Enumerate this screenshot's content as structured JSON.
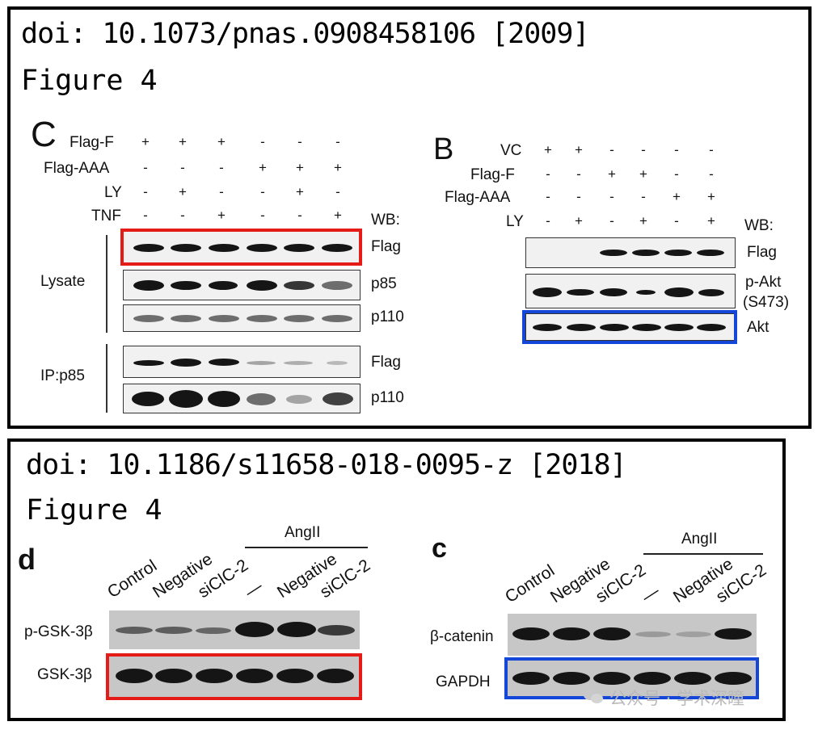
{
  "top": {
    "ref": "doi: 10.1073/pnas.0908458106 [2009]",
    "figure": "Figure 4",
    "panel_c": {
      "letter": "C",
      "conditions": [
        {
          "name": "Flag-F",
          "signs": [
            "+",
            "+",
            "+",
            "-",
            "-",
            "-"
          ]
        },
        {
          "name": "Flag-AAA",
          "signs": [
            "-",
            "-",
            "-",
            "+",
            "+",
            "+"
          ]
        },
        {
          "name": "LY",
          "signs": [
            "-",
            "+",
            "-",
            "-",
            "+",
            "-"
          ]
        },
        {
          "name": "TNF",
          "signs": [
            "-",
            "-",
            "+",
            "-",
            "-",
            "+"
          ]
        }
      ],
      "wb": "WB:",
      "group_lysate": "Lysate",
      "group_ip": "IP:p85",
      "blots": [
        "Flag",
        "p85",
        "p110",
        "Flag",
        "p110"
      ]
    },
    "panel_b": {
      "letter": "B",
      "conditions": [
        {
          "name": "VC",
          "signs": [
            "+",
            "+",
            "-",
            "-",
            "-",
            "-"
          ]
        },
        {
          "name": "Flag-F",
          "signs": [
            "-",
            "-",
            "+",
            "+",
            "-",
            "-"
          ]
        },
        {
          "name": "Flag-AAA",
          "signs": [
            "-",
            "-",
            "-",
            "-",
            "+",
            "+"
          ]
        },
        {
          "name": "LY",
          "signs": [
            "-",
            "+",
            "-",
            "+",
            "-",
            "+"
          ]
        }
      ],
      "wb": "WB:",
      "blots": [
        "Flag",
        "p-Akt",
        "(S473)",
        "Akt"
      ]
    }
  },
  "bottom": {
    "ref": "doi: 10.1186/s11658-018-0095-z [2018]",
    "figure": "Figure 4",
    "panel_d": {
      "letter": "d",
      "treatment": "AngII",
      "lanes": [
        "Control",
        "Negative",
        "siClC-2",
        "—",
        "Negative",
        "siClC-2"
      ],
      "blots": [
        "p-GSK-3β",
        "GSK-3β"
      ]
    },
    "panel_c": {
      "letter": "c",
      "treatment": "AngII",
      "lanes": [
        "Control",
        "Negative",
        "siClC-2",
        "—",
        "Negative",
        "siClC-2"
      ],
      "blots": [
        "β-catenin",
        "GAPDH"
      ]
    },
    "watermark": "公众号 · 学术深瞳"
  },
  "colors": {
    "highlight_red": "#e41b17",
    "highlight_blue": "#1446d8",
    "frame": "#000000"
  }
}
